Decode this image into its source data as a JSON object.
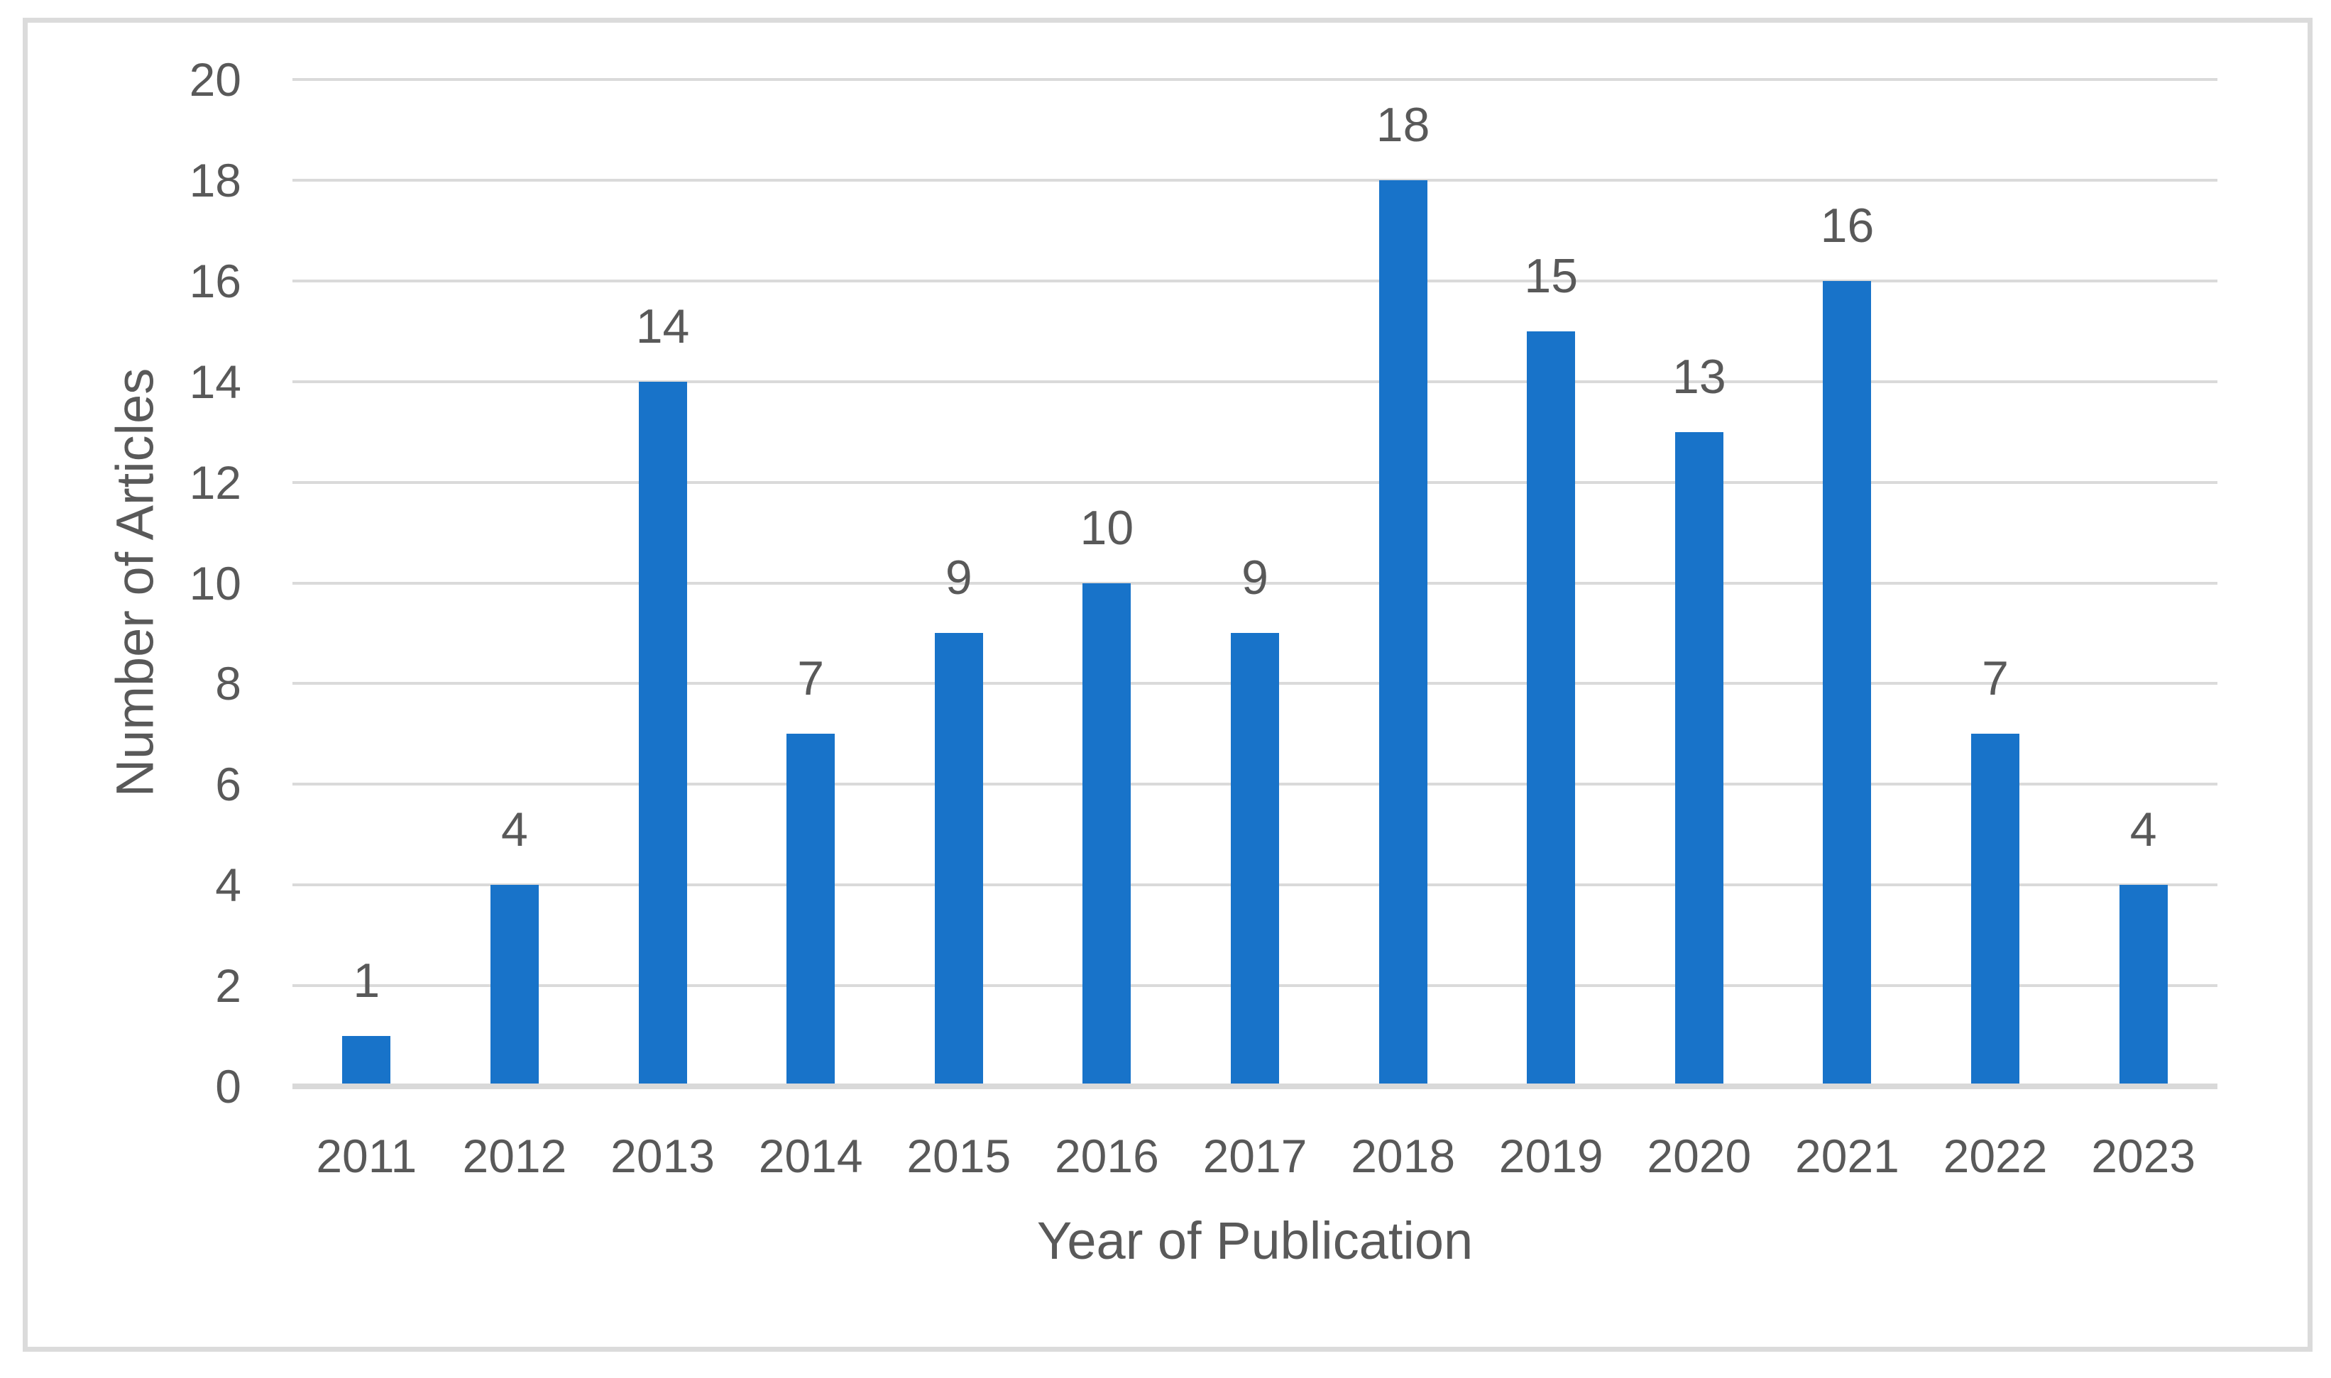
{
  "chart_data": {
    "type": "bar",
    "title": "",
    "xlabel": "Year of Publication",
    "ylabel": "Number of Articles",
    "categories": [
      "2011",
      "2012",
      "2013",
      "2014",
      "2015",
      "2016",
      "2017",
      "2018",
      "2019",
      "2020",
      "2021",
      "2022",
      "2023"
    ],
    "values": [
      1,
      4,
      14,
      7,
      9,
      10,
      9,
      18,
      15,
      13,
      16,
      7,
      4
    ],
    "data_labels": [
      "1",
      "4",
      "14",
      "7",
      "9",
      "10",
      "9",
      "18",
      "15",
      "13",
      "16",
      "7",
      "4"
    ],
    "ylim": [
      0,
      20
    ],
    "ytick_step": 2,
    "ytick_labels": [
      "0",
      "2",
      "4",
      "6",
      "8",
      "10",
      "12",
      "14",
      "16",
      "18",
      "20"
    ],
    "grid": true,
    "legend": false,
    "colors": {
      "bar": "#1873c9",
      "text": "#595959",
      "gridline": "#dadada",
      "axis_line": "#d9d9d9",
      "frame_border": "#dbdbdb",
      "background": "#ffffff"
    }
  }
}
